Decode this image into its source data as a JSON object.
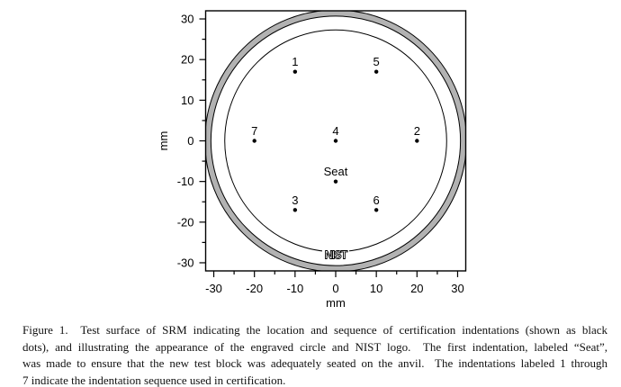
{
  "figure": {
    "caption_lines": [
      "Figure 1.  Test surface of SRM indicating the location and sequence of certification indentations (shown as black",
      "dots), and illustrating the appearance of the engraved circle and NIST logo.  The first indentation, labeled “Seat”,",
      "was made to ensure that the new test block was adequately seated on the anvil.  The indentations labeled 1 through",
      "7 indicate the indentation sequence used in certification."
    ]
  },
  "chart_data": {
    "type": "scatter",
    "title": "",
    "xlabel": "mm",
    "ylabel": "mm",
    "xlim": [
      -32,
      32
    ],
    "ylim": [
      -32,
      32
    ],
    "grid": false,
    "legend": "none",
    "x_major_ticks": [
      -30,
      -20,
      -10,
      0,
      10,
      20,
      30
    ],
    "x_minor_ticks": [
      -25,
      -15,
      -5,
      5,
      15,
      25
    ],
    "y_major_ticks": [
      -30,
      -20,
      -10,
      0,
      10,
      20,
      30
    ],
    "y_minor_ticks": [
      -25,
      -15,
      -5,
      5,
      15,
      25
    ],
    "ring": {
      "name": "test-block-edge",
      "outer_r": 32.2,
      "inner_r": 30.7
    },
    "engraved_circle_r": 27.3,
    "points": [
      {
        "label": "1",
        "x": -10,
        "y": 17
      },
      {
        "label": "5",
        "x": 10,
        "y": 17
      },
      {
        "label": "7",
        "x": -20,
        "y": 0
      },
      {
        "label": "4",
        "x": 0,
        "y": 0
      },
      {
        "label": "2",
        "x": 20,
        "y": 0
      },
      {
        "label": "Seat",
        "x": 0,
        "y": -10
      },
      {
        "label": "3",
        "x": -10,
        "y": -17
      },
      {
        "label": "6",
        "x": 10,
        "y": -17
      }
    ],
    "logo": {
      "text": "NIST",
      "x": 0,
      "y": -28
    },
    "colors": {
      "ring_gray": "#b2b2b2",
      "line_black": "#000000",
      "background": "#ffffff"
    }
  }
}
